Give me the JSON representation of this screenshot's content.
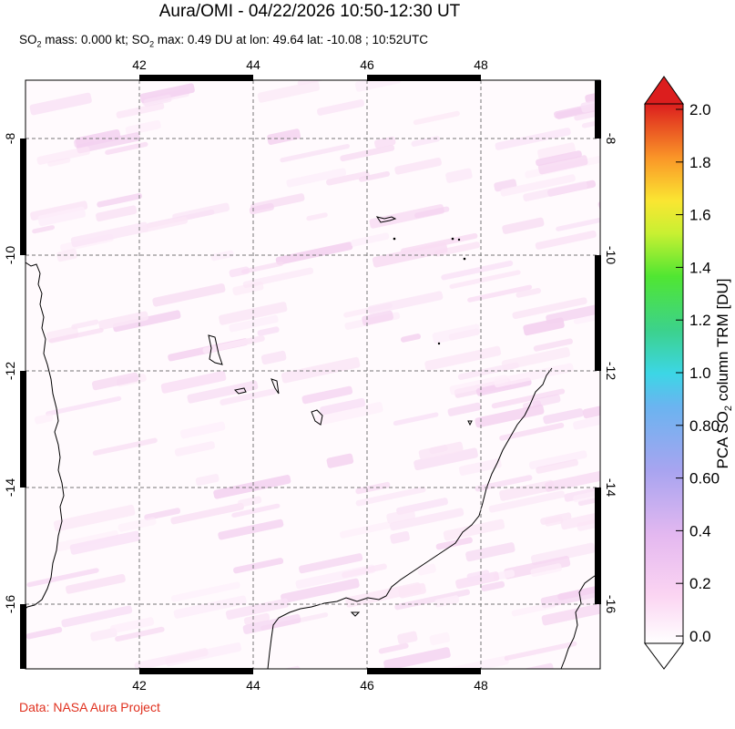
{
  "title": "Aura/OMI - 04/22/2026 10:50-12:30 UT",
  "subtitle": {
    "prefix": "SO",
    "sub1": "2",
    "middle": " mass: 0.000 kt; SO",
    "sub2": "2",
    "suffix": " max: 0.49 DU at lon: 49.64 lat: -10.08 ; 10:52UTC"
  },
  "credit": "Data: NASA Aura Project",
  "map": {
    "lon_ticks": [
      "42",
      "44",
      "46",
      "48"
    ],
    "lat_ticks": [
      "-8",
      "-10",
      "-12",
      "-14",
      "-16"
    ],
    "lon_range": [
      40.0,
      50.0
    ],
    "lat_range": [
      -17.2,
      -7.0
    ]
  },
  "colorbar": {
    "label_prefix": "PCA SO",
    "label_sub": "2",
    "label_suffix": " column TRM [DU]",
    "ticks": [
      "2.0",
      "1.8",
      "1.6",
      "1.4",
      "1.2",
      "1.0",
      "0.80",
      "0.60",
      "0.4",
      "0.2",
      "0.0"
    ],
    "colors": [
      "#ffffff",
      "#fbd4f2",
      "#c8aaf0",
      "#8fa0f0",
      "#4ab4f0",
      "#3cd6d2",
      "#3cd26e",
      "#50e632",
      "#c8f032",
      "#fae632",
      "#fa9628",
      "#f04628",
      "#dc1e1e"
    ]
  }
}
